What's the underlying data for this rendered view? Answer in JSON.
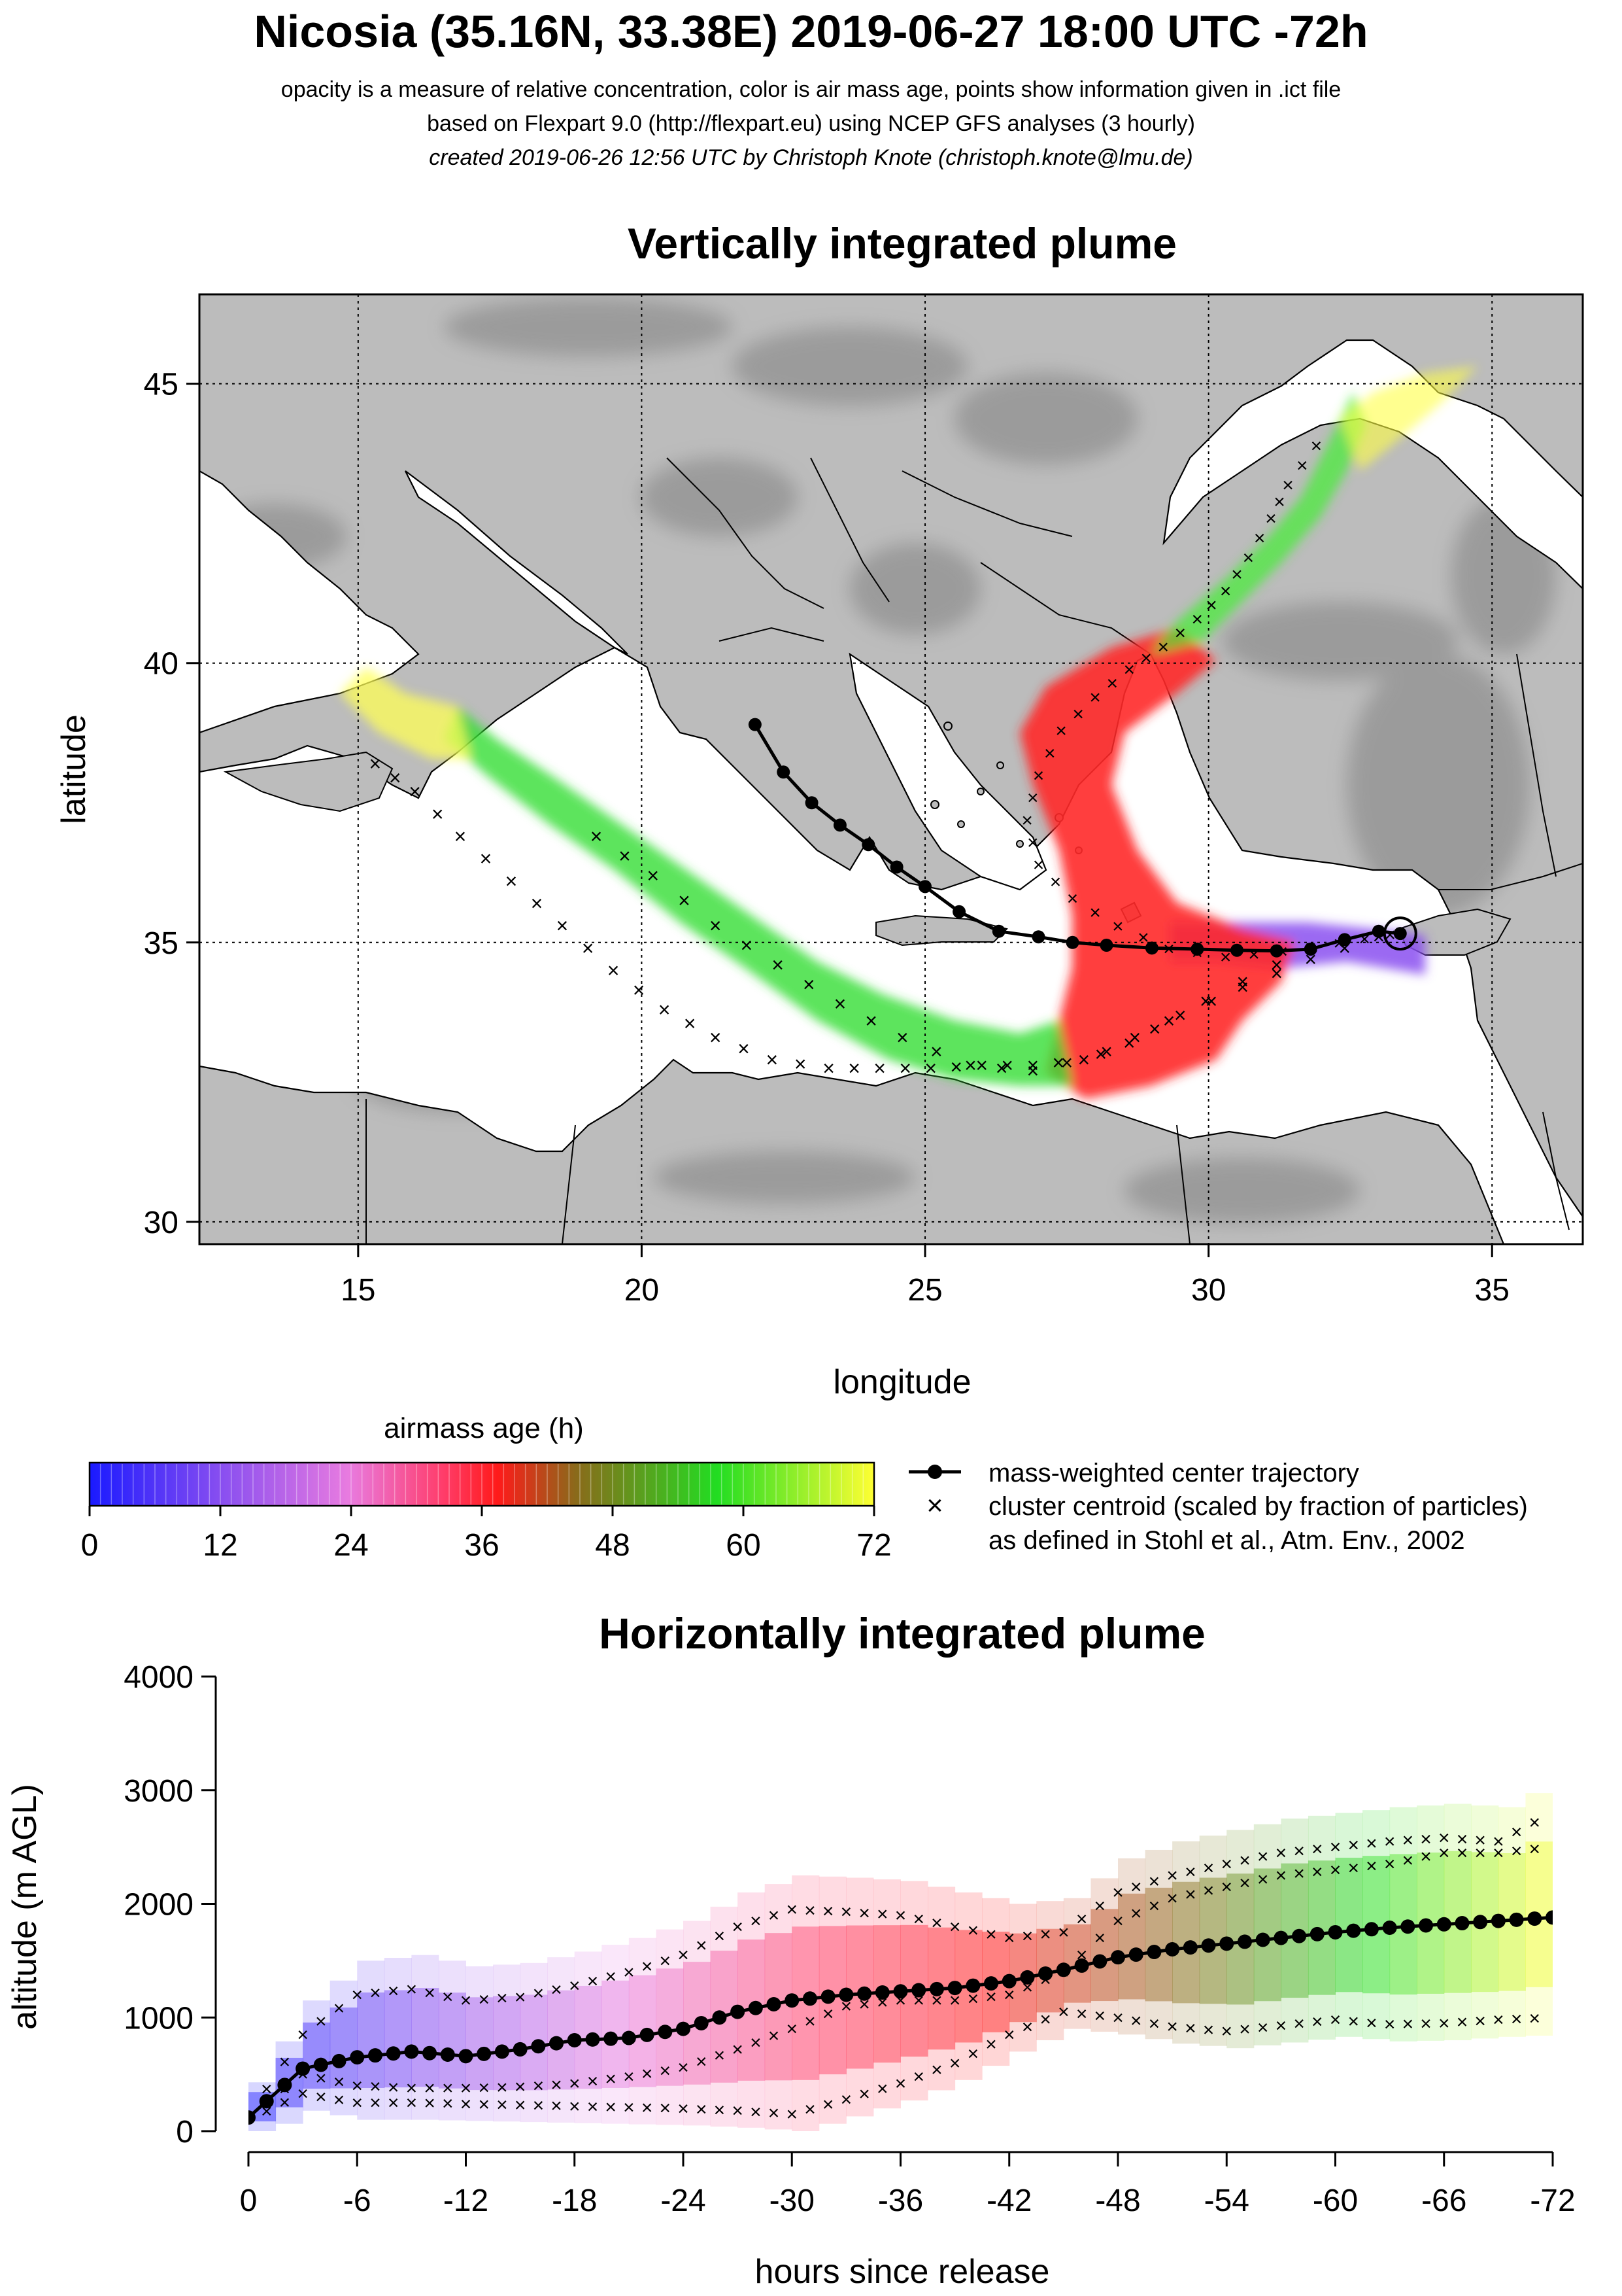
{
  "header": {
    "title": "Nicosia (35.16N, 33.38E) 2019-06-27 18:00 UTC -72h",
    "subtitle_1": "opacity is a measure of relative concentration, color is air mass age, points show information given in .ict file",
    "subtitle_2": "based on Flexpart 9.0 (http://flexpart.eu) using NCEP GFS analyses (3 hourly)",
    "subtitle_3": "created 2019-06-26 12:56 UTC by Christoph Knote (christoph.knote@lmu.de)"
  },
  "colors": {
    "map_background": "#bdbdbd",
    "sea": "#ffffff",
    "age_colors": [
      "#1a1aff",
      "#8a4ff0",
      "#e87be0",
      "#ff3d6b",
      "#ff1a1a",
      "#8a6a1a",
      "#22dd22",
      "#ffff33"
    ]
  },
  "chart_data": [
    {
      "type": "map",
      "title": "Vertically integrated plume",
      "xlabel": "longitude",
      "ylabel": "latitude",
      "xlim": [
        12.2,
        36.6
      ],
      "ylim": [
        29.6,
        46.6
      ],
      "x_ticks": [
        15,
        20,
        25,
        30,
        35
      ],
      "y_ticks": [
        30,
        35,
        40,
        45
      ],
      "grid": true,
      "release_site": {
        "lon": 33.38,
        "lat": 35.16
      },
      "center_trajectory": {
        "lon": [
          33.38,
          33.0,
          32.4,
          31.8,
          31.2,
          30.5,
          29.8,
          29.0,
          28.2,
          27.6,
          27.0,
          26.3,
          25.6,
          25.0,
          24.5,
          24.0,
          23.5,
          23.0,
          22.5,
          22.0
        ],
        "lat": [
          35.16,
          35.2,
          35.05,
          34.88,
          34.85,
          34.86,
          34.88,
          34.9,
          34.95,
          35.0,
          35.1,
          35.2,
          35.55,
          36.0,
          36.35,
          36.75,
          37.1,
          37.5,
          38.05,
          38.9
        ]
      },
      "cluster_tracks": [
        {
          "lon": [
            33.2,
            32.3,
            31.3,
            30.3,
            29.3,
            28.4,
            27.6,
            27.0,
            26.8,
            27.0,
            27.4,
            28.0,
            28.6,
            29.2,
            29.8,
            30.3,
            30.7,
            31.1,
            31.4,
            31.9
          ],
          "lat": [
            35.15,
            35.0,
            34.85,
            34.75,
            34.9,
            35.3,
            35.8,
            36.4,
            37.2,
            38.0,
            38.8,
            39.4,
            39.9,
            40.3,
            40.8,
            41.3,
            41.9,
            42.6,
            43.2,
            43.9
          ]
        },
        {
          "lon": [
            33.0,
            31.8,
            30.6,
            29.5,
            28.6,
            27.8,
            26.9,
            26.0,
            25.1,
            24.2,
            23.3,
            22.3,
            21.3,
            20.4,
            19.5,
            18.6,
            17.7,
            16.8,
            16.0,
            15.3
          ],
          "lat": [
            35.1,
            34.7,
            34.2,
            33.7,
            33.2,
            32.9,
            32.8,
            32.8,
            32.75,
            32.75,
            32.75,
            32.9,
            33.3,
            33.8,
            34.5,
            35.3,
            36.1,
            36.9,
            37.7,
            38.2
          ]
        },
        {
          "lon": [
            31.8,
            30.6,
            29.3,
            28.1,
            26.9,
            25.8,
            24.6,
            23.5,
            22.4,
            21.3,
            20.2,
            19.2
          ],
          "lat": [
            34.9,
            34.3,
            33.6,
            33.0,
            32.7,
            32.8,
            33.3,
            33.9,
            34.6,
            35.3,
            36.2,
            36.9
          ]
        }
      ]
    },
    {
      "type": "scatter",
      "title": "Horizontally integrated plume",
      "xlabel": "hours since release",
      "ylabel": "altitude (m AGL)",
      "x_ticks": [
        0,
        -6,
        -12,
        -18,
        -24,
        -30,
        -36,
        -42,
        -48,
        -54,
        -60,
        -66,
        -72
      ],
      "y_ticks": [
        0,
        1000,
        2000,
        3000,
        4000
      ],
      "xlim": [
        0,
        -72
      ],
      "ylim": [
        0,
        4000
      ],
      "legend": [
        {
          "marker": "line-dot",
          "label": "mass-weighted center trajectory"
        },
        {
          "marker": "x",
          "label": "cluster centroid (scaled by fraction of particles)"
        },
        {
          "marker": "",
          "label": "as defined in Stohl et al., Atm. Env., 2002"
        }
      ],
      "colorbar": {
        "label": "airmass age (h)",
        "ticks": [
          0,
          12,
          24,
          36,
          48,
          60,
          72
        ],
        "range": [
          0,
          72
        ]
      },
      "center_trajectory": {
        "hours": [
          0,
          -3,
          -6,
          -9,
          -12,
          -15,
          -18,
          -21,
          -24,
          -27,
          -30,
          -33,
          -36,
          -39,
          -42,
          -45,
          -48,
          -51,
          -54,
          -57,
          -60,
          -63,
          -66,
          -69,
          -72
        ],
        "altitude": [
          120,
          550,
          650,
          700,
          660,
          720,
          800,
          820,
          900,
          1050,
          1150,
          1200,
          1230,
          1260,
          1320,
          1420,
          1530,
          1600,
          1650,
          1700,
          1750,
          1790,
          1820,
          1850,
          1880
        ]
      },
      "clusters": [
        {
          "hours": [
            0,
            -3,
            -6,
            -9,
            -12,
            -15,
            -18,
            -21,
            -24,
            -27,
            -30,
            -33,
            -36,
            -39,
            -42,
            -45,
            -48,
            -51,
            -54,
            -57,
            -60,
            -63,
            -66,
            -69,
            -72
          ],
          "altitude": [
            130,
            850,
            1200,
            1250,
            1150,
            1180,
            1280,
            1400,
            1550,
            1800,
            1950,
            1930,
            1900,
            1800,
            1700,
            1750,
            2100,
            2250,
            2350,
            2450,
            2500,
            2550,
            2580,
            2550,
            2800
          ]
        },
        {
          "hours": [
            0,
            -3,
            -6,
            -9,
            -12,
            -15,
            -18,
            -21,
            -24,
            -27,
            -30,
            -33,
            -36,
            -39,
            -42,
            -45,
            -48,
            -51,
            -54,
            -57,
            -60,
            -63,
            -66,
            -69,
            -72
          ],
          "altitude": [
            110,
            500,
            400,
            380,
            380,
            390,
            420,
            480,
            560,
            720,
            900,
            1100,
            1150,
            1150,
            1200,
            1400,
            1850,
            2050,
            2150,
            2250,
            2300,
            2350,
            2450,
            2450,
            2500
          ]
        },
        {
          "hours": [
            0,
            -3,
            -6,
            -9,
            -12,
            -15,
            -18,
            -21,
            -24,
            -27,
            -30,
            -33,
            -36,
            -39,
            -42,
            -45,
            -48,
            -51,
            -54,
            -57,
            -60,
            -63,
            -66,
            -69,
            -72
          ],
          "altitude": [
            100,
            330,
            250,
            250,
            240,
            230,
            220,
            210,
            200,
            180,
            150,
            280,
            420,
            600,
            850,
            1050,
            1000,
            920,
            880,
            930,
            980,
            940,
            950,
            980,
            1000
          ]
        }
      ]
    }
  ]
}
